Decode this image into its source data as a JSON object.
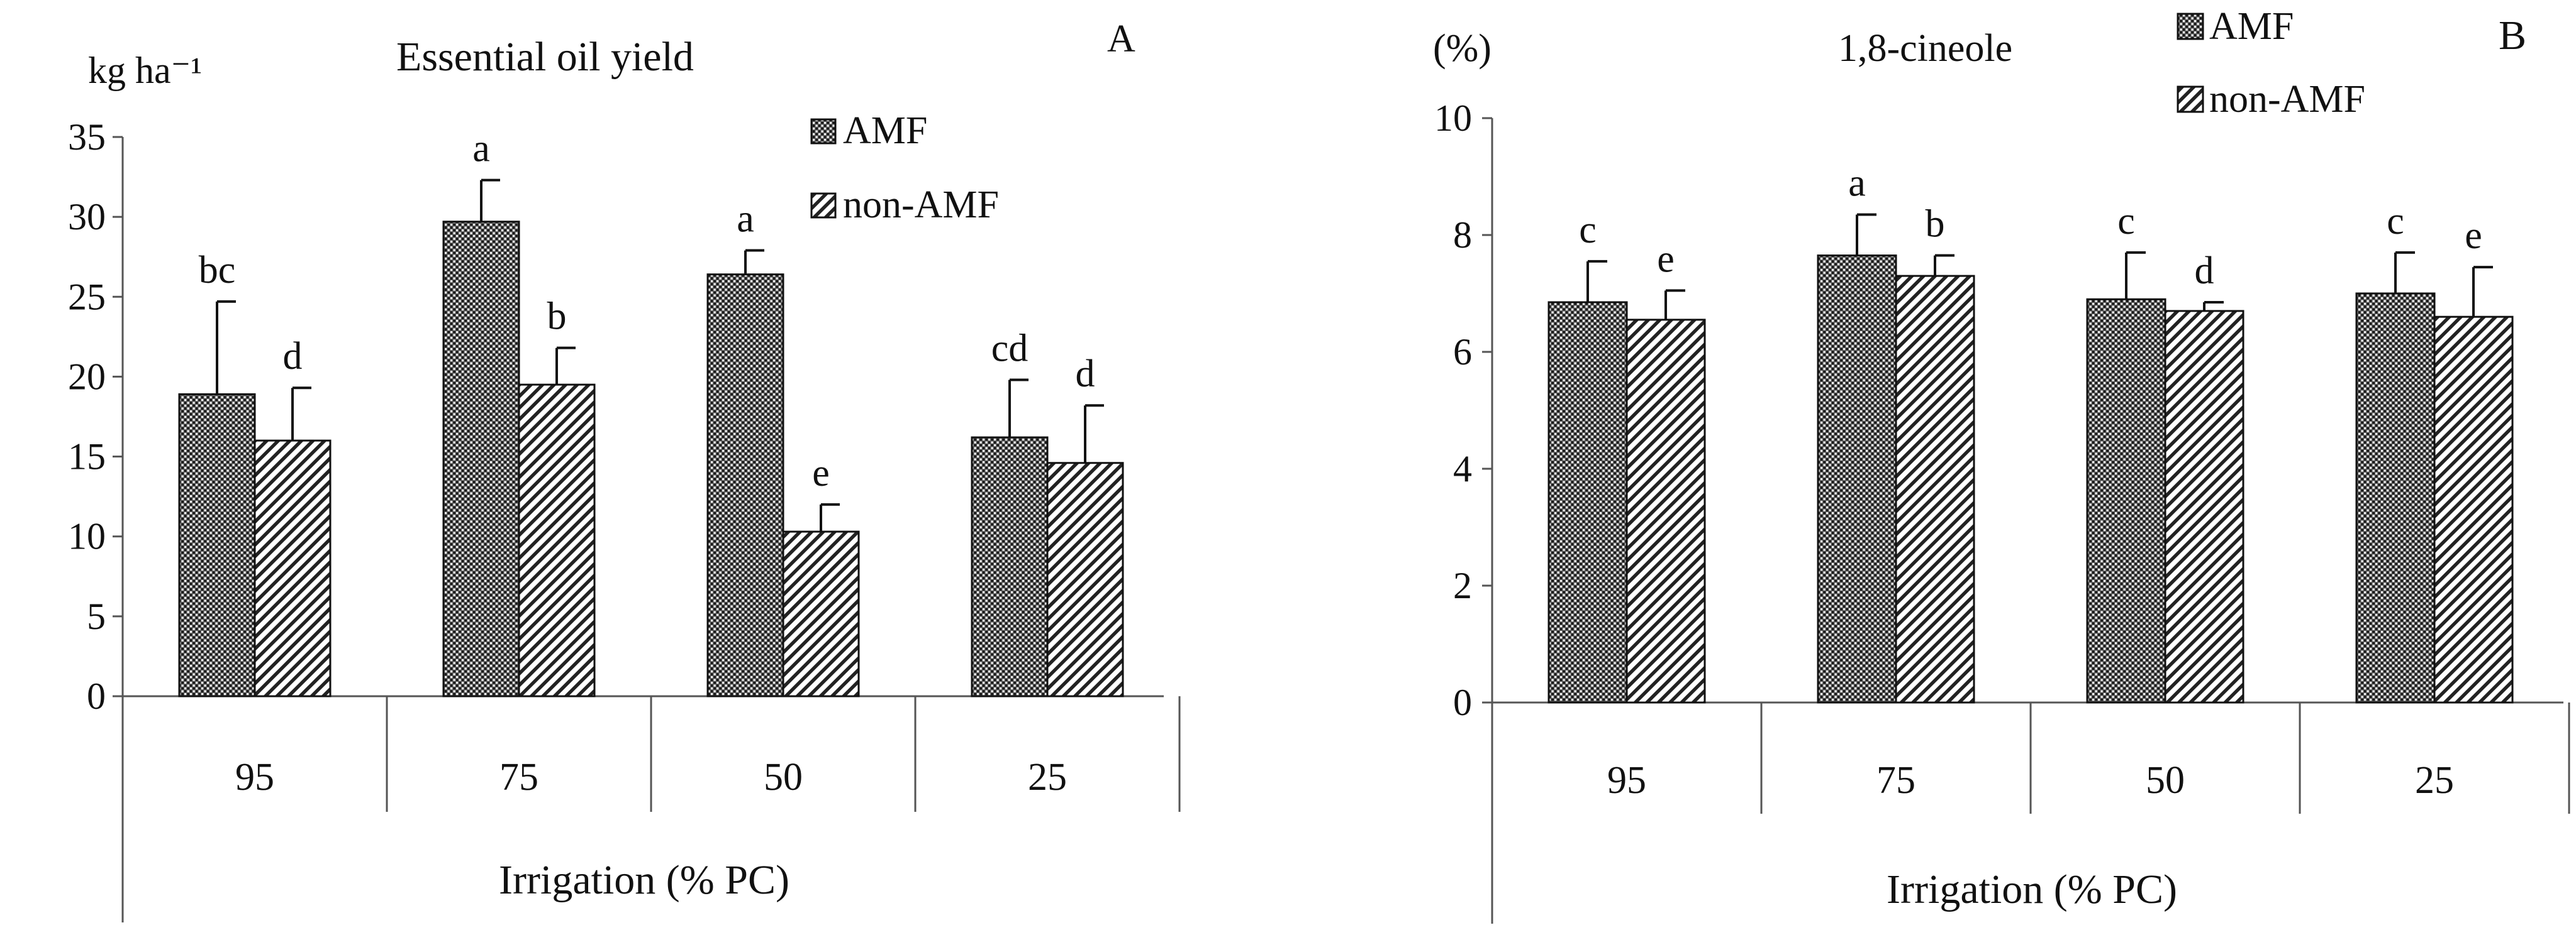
{
  "chart_data": [
    {
      "type": "bar",
      "panel_letter": "A",
      "title": "Essential oil yield",
      "ylabel": "kg ha⁻¹",
      "xlabel": "Irrigation (% PC)",
      "categories": [
        "95",
        "75",
        "50",
        "25"
      ],
      "ylim": [
        0,
        35
      ],
      "yticks": [
        "0",
        "5",
        "10",
        "15",
        "20",
        "25",
        "30",
        "35"
      ],
      "series": [
        {
          "name": "AMF",
          "values": [
            18.9,
            29.7,
            26.4,
            16.2
          ],
          "errors": [
            5.8,
            2.6,
            1.5,
            3.6
          ],
          "letters": [
            "bc",
            "a",
            "a",
            "cd"
          ]
        },
        {
          "name": "non-AMF",
          "values": [
            16.0,
            19.5,
            10.3,
            14.6
          ],
          "errors": [
            3.3,
            2.3,
            1.7,
            3.6
          ],
          "letters": [
            "d",
            "b",
            "e",
            "d"
          ]
        }
      ],
      "legend_position": "top-right",
      "grid": false
    },
    {
      "type": "bar",
      "panel_letter": "B",
      "title": "1,8-cineole",
      "ylabel": "(%)",
      "xlabel": "Irrigation (% PC)",
      "categories": [
        "95",
        "75",
        "50",
        "25"
      ],
      "ylim": [
        0,
        10
      ],
      "yticks": [
        "0",
        "2",
        "4",
        "6",
        "8",
        "10"
      ],
      "series": [
        {
          "name": "AMF",
          "values": [
            6.85,
            7.65,
            6.9,
            7.0
          ],
          "errors": [
            0.7,
            0.7,
            0.8,
            0.7
          ],
          "letters": [
            "c",
            "a",
            "c",
            "c"
          ]
        },
        {
          "name": "non-AMF",
          "values": [
            6.55,
            7.3,
            6.7,
            6.6
          ],
          "errors": [
            0.5,
            0.35,
            0.15,
            0.85
          ],
          "letters": [
            "e",
            "b",
            "d",
            "e"
          ]
        }
      ],
      "legend_position": "top-right",
      "grid": false
    }
  ],
  "colors": {
    "bar_stroke": "#111111",
    "pattern_line": "#222222",
    "background": "#ffffff"
  }
}
